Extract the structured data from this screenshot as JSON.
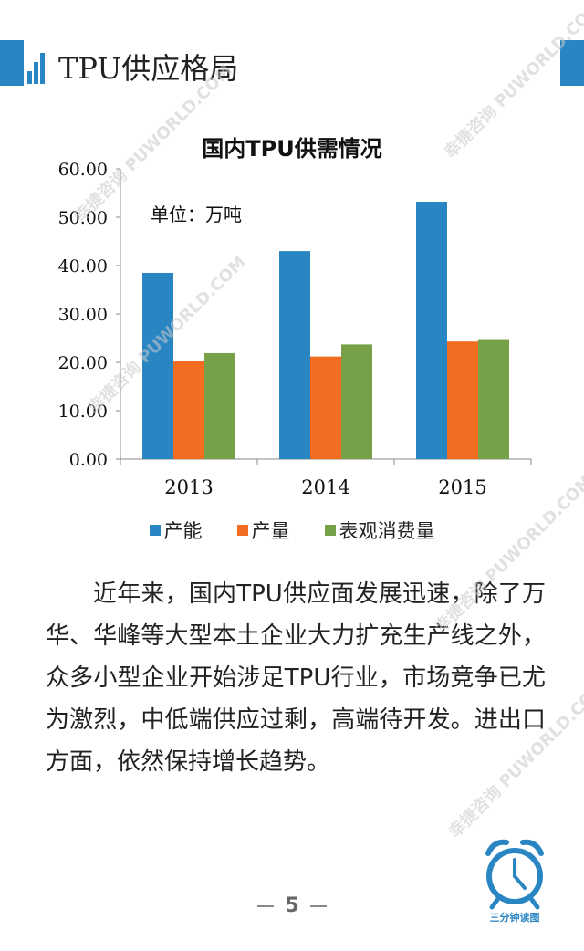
{
  "header": {
    "title": "TPU供应格局"
  },
  "chart_data": {
    "type": "bar",
    "title": "国内TPU供需情况",
    "unit_label": "单位：万吨",
    "categories": [
      "2013",
      "2014",
      "2015"
    ],
    "series": [
      {
        "name": "产能",
        "color": "#2a86c3",
        "values": [
          38.5,
          43.0,
          53.2
        ]
      },
      {
        "name": "产量",
        "color": "#f26c21",
        "values": [
          20.3,
          21.2,
          24.3
        ]
      },
      {
        "name": "表观消费量",
        "color": "#76a149",
        "values": [
          21.9,
          23.7,
          24.8
        ]
      }
    ],
    "yticks": [
      "0.00",
      "10.00",
      "20.00",
      "30.00",
      "40.00",
      "50.00",
      "60.00"
    ],
    "ylim": [
      0,
      60
    ],
    "grid": false,
    "legend_position": "bottom"
  },
  "body": {
    "paragraph": "近年来，国内TPU供应面发展迅速，除了万华、华峰等大型本土企业大力扩充生产线之外，众多小型企业开始涉足TPU行业，市场竞争已尤为激烈，中低端供应过剩，高端待开发。进出口方面，依然保持增长趋势。"
  },
  "footer": {
    "page_number": "5",
    "logo_label": "三分钟读图"
  },
  "watermarks": [
    "PUWORLD.COM",
    "幸捷咨询"
  ]
}
